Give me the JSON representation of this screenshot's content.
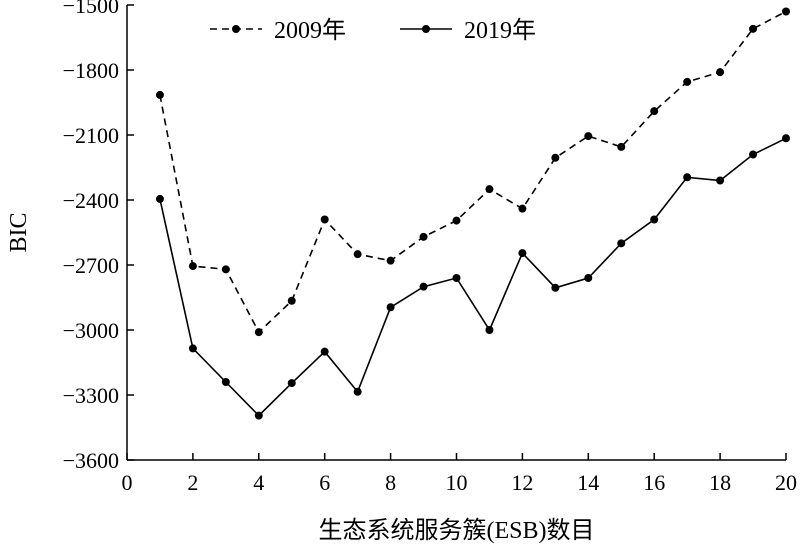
{
  "chart_data": {
    "type": "line",
    "xlabel": "生态系统服务簇(ESB)数目",
    "ylabel": "BIC",
    "xlim": [
      0,
      20
    ],
    "ylim": [
      -3600,
      -1500
    ],
    "x_ticks": [
      0,
      2,
      4,
      6,
      8,
      10,
      12,
      14,
      16,
      18,
      20
    ],
    "y_ticks": [
      -1500,
      -1800,
      -2100,
      -2400,
      -2700,
      -3000,
      -3300,
      -3600
    ],
    "x_tick_labels": [
      "0",
      "2",
      "4",
      "6",
      "8",
      "10",
      "12",
      "14",
      "16",
      "18",
      "20"
    ],
    "y_tick_labels": [
      "−1500",
      "−1800",
      "−2100",
      "−2400",
      "−2700",
      "−3000",
      "−3300",
      "−3600"
    ],
    "grid": false,
    "legend_position": "top-left",
    "x": [
      1,
      2,
      3,
      4,
      5,
      6,
      7,
      8,
      9,
      10,
      11,
      12,
      13,
      14,
      15,
      16,
      17,
      18,
      19,
      20
    ],
    "series": [
      {
        "name": "2009年",
        "style": "dashed",
        "color": "#000000",
        "values": [
          -1915,
          -2705,
          -2720,
          -3010,
          -2865,
          -2490,
          -2650,
          -2680,
          -2570,
          -2495,
          -2350,
          -2440,
          -2205,
          -2105,
          -2155,
          -1990,
          -1855,
          -1810,
          -1610,
          -1530
        ]
      },
      {
        "name": "2019年",
        "style": "solid",
        "color": "#000000",
        "values": [
          -2395,
          -3085,
          -3240,
          -3395,
          -3245,
          -3100,
          -3285,
          -2895,
          -2800,
          -2760,
          -3000,
          -2645,
          -2805,
          -2760,
          -2600,
          -2490,
          -2295,
          -2310,
          -2190,
          -2115
        ]
      }
    ]
  }
}
